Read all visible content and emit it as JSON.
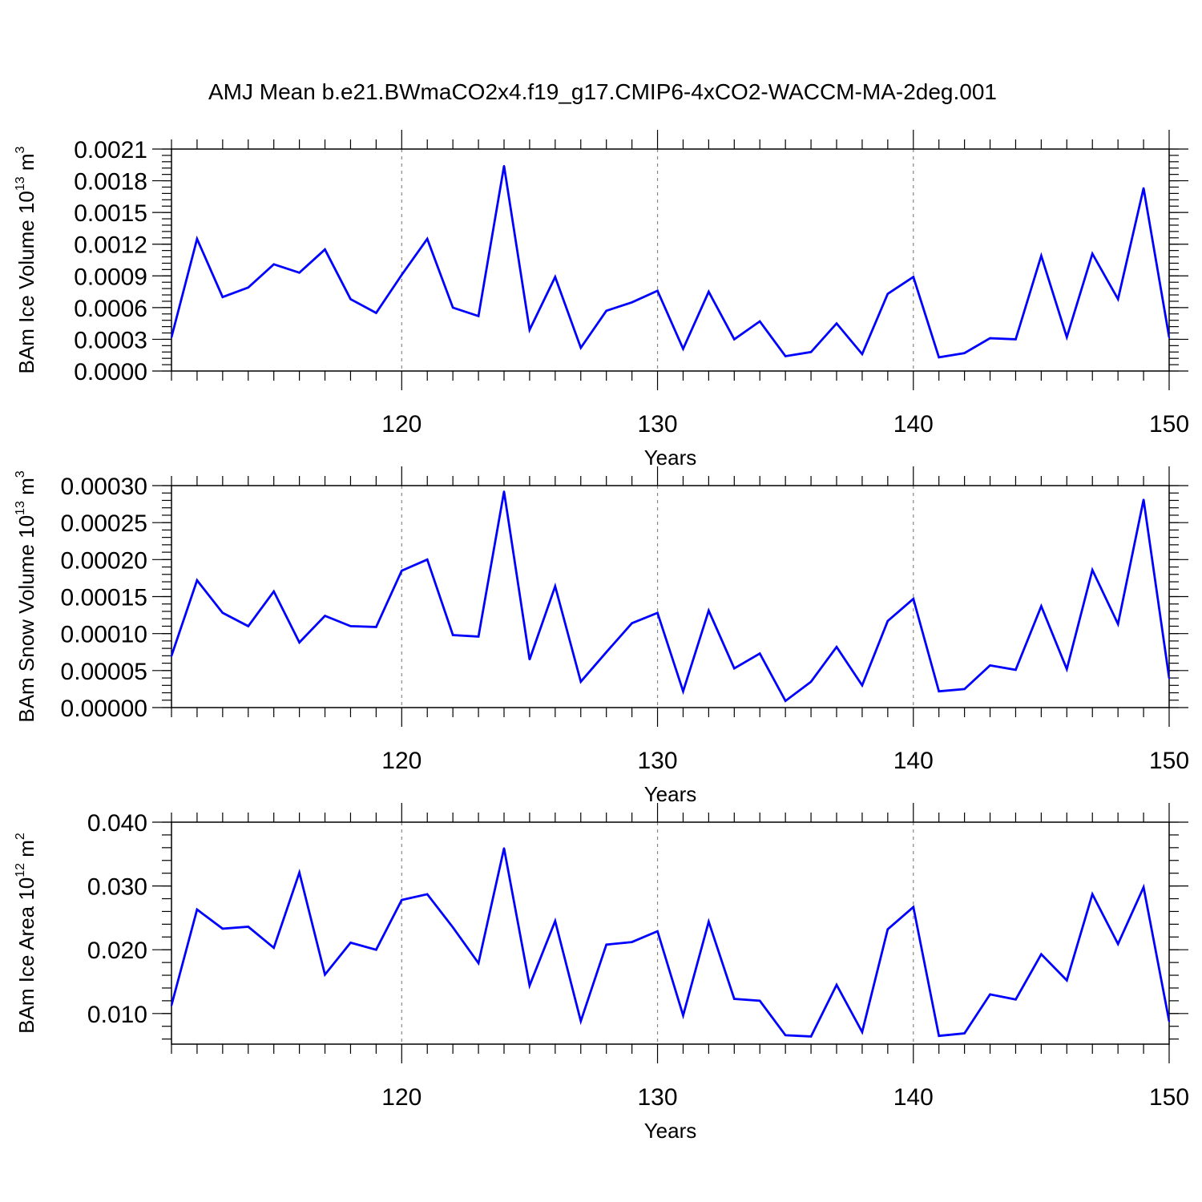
{
  "title": "AMJ Mean b.e21.BWmaCO2x4.f19_g17.CMIP6-4xCO2-WACCM-MA-2deg.001",
  "chart_data": [
    {
      "type": "line",
      "xlabel": "Years",
      "ylabel": {
        "text": "BAm Ice Volume 10",
        "exp": "13",
        "unit": " m",
        "unit_exp": "3"
      },
      "xlim": [
        111,
        150
      ],
      "ylim": [
        0,
        0.0021
      ],
      "xticks": [
        120,
        130,
        140,
        150
      ],
      "yticks": [
        0.0,
        0.0003,
        0.0006,
        0.0009,
        0.0012,
        0.0015,
        0.0018,
        0.0021
      ],
      "ytick_labels": [
        "0.0000",
        "0.0003",
        "0.0006",
        "0.0009",
        "0.0012",
        "0.0015",
        "0.0018",
        "0.0021"
      ],
      "grid": "vertical dashed at major x ticks",
      "color": "#0000ff",
      "x": [
        111,
        112,
        113,
        114,
        115,
        116,
        117,
        118,
        119,
        120,
        121,
        122,
        123,
        124,
        125,
        126,
        127,
        128,
        129,
        130,
        131,
        132,
        133,
        134,
        135,
        136,
        137,
        138,
        139,
        140,
        141,
        142,
        143,
        144,
        145,
        146,
        147,
        148,
        149,
        150
      ],
      "y": [
        0.00032,
        0.00125,
        0.0007,
        0.00079,
        0.00101,
        0.00093,
        0.00115,
        0.00068,
        0.00055,
        0.00091,
        0.00125,
        0.0006,
        0.00052,
        0.00194,
        0.00039,
        0.00089,
        0.00022,
        0.00057,
        0.00065,
        0.00076,
        0.00021,
        0.00075,
        0.0003,
        0.00047,
        0.00014,
        0.00018,
        0.00045,
        0.00016,
        0.00073,
        0.00089,
        0.00013,
        0.00017,
        0.00031,
        0.0003,
        0.00109,
        0.00032,
        0.00111,
        0.00068,
        0.00173,
        0.00032
      ]
    },
    {
      "type": "line",
      "xlabel": "Years",
      "ylabel": {
        "text": "BAm Snow Volume 10",
        "exp": "13",
        "unit": " m",
        "unit_exp": "3"
      },
      "xlim": [
        111,
        150
      ],
      "ylim": [
        0,
        0.0003
      ],
      "xticks": [
        120,
        130,
        140,
        150
      ],
      "yticks": [
        0.0,
        5e-05,
        0.0001,
        0.00015,
        0.0002,
        0.00025,
        0.0003
      ],
      "ytick_labels": [
        "0.00000",
        "0.00005",
        "0.00010",
        "0.00015",
        "0.00020",
        "0.00025",
        "0.00030"
      ],
      "grid": "vertical dashed at major x ticks",
      "color": "#0000ff",
      "x": [
        111,
        112,
        113,
        114,
        115,
        116,
        117,
        118,
        119,
        120,
        121,
        122,
        123,
        124,
        125,
        126,
        127,
        128,
        129,
        130,
        131,
        132,
        133,
        134,
        135,
        136,
        137,
        138,
        139,
        140,
        141,
        142,
        143,
        144,
        145,
        146,
        147,
        148,
        149,
        150
      ],
      "y": [
        7e-05,
        0.000172,
        0.000128,
        0.00011,
        0.000157,
        8.8e-05,
        0.000124,
        0.00011,
        0.000109,
        0.000185,
        0.0002,
        9.8e-05,
        9.6e-05,
        0.000292,
        6.5e-05,
        0.000164,
        3.5e-05,
        7.5e-05,
        0.000114,
        0.000128,
        2.2e-05,
        0.000131,
        5.3e-05,
        7.3e-05,
        9e-06,
        3.5e-05,
        8.2e-05,
        3e-05,
        0.000117,
        0.000147,
        2.2e-05,
        2.5e-05,
        5.7e-05,
        5.1e-05,
        0.000137,
        5.2e-05,
        0.000186,
        0.000113,
        0.000281,
        4e-05
      ]
    },
    {
      "type": "line",
      "xlabel": "Years",
      "ylabel": {
        "text": "BAm Ice Area 10",
        "exp": "12",
        "unit": " m",
        "unit_exp": "2"
      },
      "xlim": [
        111,
        150
      ],
      "ylim": [
        0.0052,
        0.04
      ],
      "xticks": [
        120,
        130,
        140,
        150
      ],
      "yticks": [
        0.01,
        0.02,
        0.03,
        0.04
      ],
      "ytick_labels": [
        "0.010",
        "0.020",
        "0.030",
        "0.040"
      ],
      "grid": "vertical dashed at major x ticks",
      "color": "#0000ff",
      "x": [
        111,
        112,
        113,
        114,
        115,
        116,
        117,
        118,
        119,
        120,
        121,
        122,
        123,
        124,
        125,
        126,
        127,
        128,
        129,
        130,
        131,
        132,
        133,
        134,
        135,
        136,
        137,
        138,
        139,
        140,
        141,
        142,
        143,
        144,
        145,
        146,
        147,
        148,
        149,
        150
      ],
      "y": [
        0.0113,
        0.0263,
        0.0233,
        0.0236,
        0.0203,
        0.0321,
        0.0161,
        0.0211,
        0.02,
        0.0278,
        0.0287,
        0.0235,
        0.0179,
        0.0359,
        0.0144,
        0.0245,
        0.0088,
        0.0208,
        0.0212,
        0.0229,
        0.0097,
        0.0244,
        0.0123,
        0.012,
        0.0066,
        0.0064,
        0.0145,
        0.0071,
        0.0232,
        0.0267,
        0.0065,
        0.0069,
        0.013,
        0.0122,
        0.0193,
        0.0152,
        0.0287,
        0.0209,
        0.0298,
        0.0088
      ]
    }
  ]
}
